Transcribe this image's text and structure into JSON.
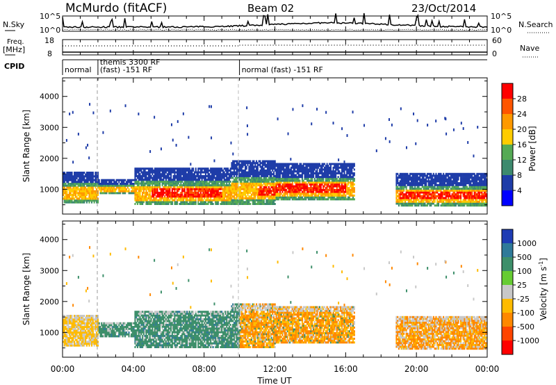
{
  "header": {
    "station": "McMurdo (fitACF)",
    "beam": "Beam 02",
    "date": "23/Oct/2014"
  },
  "strip_labels": {
    "nsky": "N.Sky",
    "nsearch": "N.Search",
    "freq": "Freq.",
    "mhz": "[MHz]",
    "nave": "Nave",
    "cpid": "CPID",
    "nsky_ticks": [
      "10^5",
      "10^0"
    ],
    "freq_ticks": [
      "18",
      "8"
    ],
    "nave_ticks": [
      "60",
      "0"
    ]
  },
  "cpid_segments": [
    {
      "lines": [
        "normal"
      ],
      "start_hour": 0.0
    },
    {
      "lines": [
        "themis 3300 RF",
        "(fast) -151 RF"
      ],
      "start_hour": 2.0
    },
    {
      "lines": [
        "normal (fast) -151 RF"
      ],
      "start_hour": 10.0
    }
  ],
  "axes": {
    "ylabel": "Slant Range [km]",
    "xlabel": "Time UT",
    "y_ticks": [
      1000,
      2000,
      3000,
      4000
    ],
    "ylim": [
      200,
      4600
    ],
    "x_ticks": [
      "00:00",
      "04:00",
      "08:00",
      "12:00",
      "16:00",
      "20:00",
      "00:00"
    ],
    "xlim_hours": [
      0,
      24
    ]
  },
  "power_scale": {
    "label": "Power [dB]",
    "ticks": [
      "28",
      "24",
      "20",
      "16",
      "12",
      "8",
      "4"
    ],
    "colors": [
      "#ff0000",
      "#ff5500",
      "#ff9900",
      "#ffcc00",
      "#55aa55",
      "#3d8a6e",
      "#1e3ca8",
      "#0000ff"
    ]
  },
  "velocity_scale": {
    "label": "Velocity [m s",
    "label_sup": "-1",
    "label_end": "]",
    "ticks": [
      "1000",
      "500",
      "100",
      "25",
      "-25",
      "-100",
      "-500",
      "-1000"
    ],
    "colors": [
      "#1e3cb4",
      "#2f7a99",
      "#3d8f6a",
      "#66cc33",
      "#c8c8c8",
      "#ffbb00",
      "#ff8800",
      "#ff4400",
      "#ff0000"
    ]
  },
  "chart_data": [
    {
      "type": "heatmap",
      "title": "",
      "ylabel": "Slant Range [km]",
      "colorbar": "Power [dB]",
      "x": [
        "00:00",
        "04:00",
        "08:00",
        "12:00",
        "16:00",
        "20:00",
        "00:00"
      ],
      "ylim": [
        200,
        4600
      ]
    },
    {
      "type": "heatmap",
      "title": "",
      "ylabel": "Slant Range [km]",
      "xlabel": "Time UT",
      "colorbar": "Velocity [m s-1]",
      "x": [
        "00:00",
        "04:00",
        "08:00",
        "12:00",
        "16:00",
        "20:00",
        "00:00"
      ],
      "ylim": [
        200,
        4600
      ]
    }
  ]
}
